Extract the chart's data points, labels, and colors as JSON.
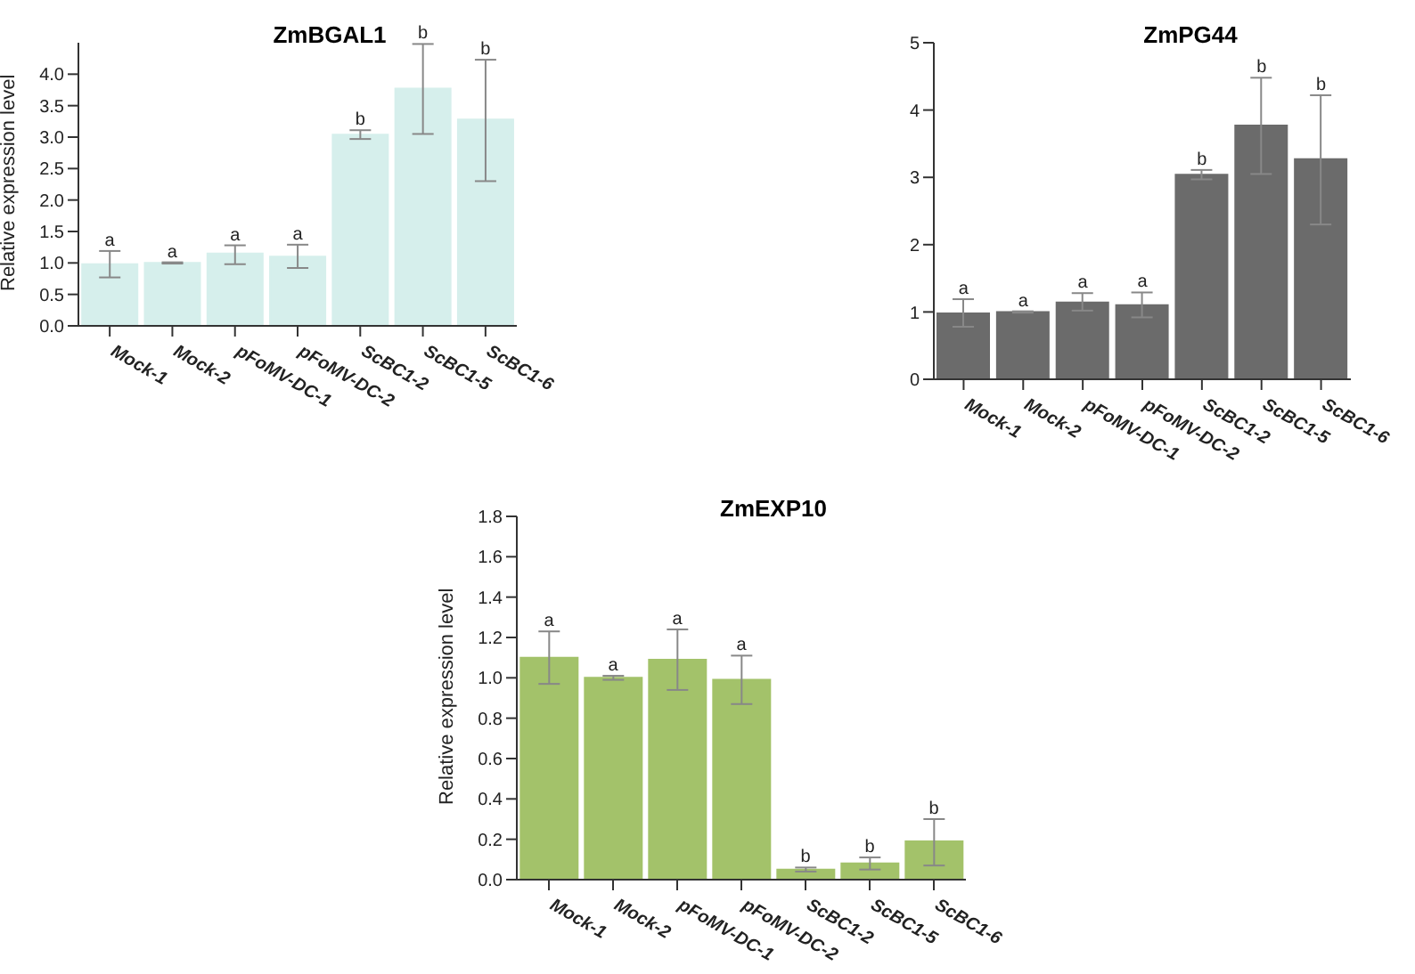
{
  "chart_data": [
    {
      "type": "bar",
      "title": "ZmBGAL1",
      "ylabel": "Relative expression level",
      "categories": [
        "Mock-1",
        "Mock-2",
        "pFoMV-DC-1",
        "pFoMV-DC-2",
        "ScBC1-2",
        "ScBC1-5",
        "ScBC1-6"
      ],
      "series": [
        {
          "color": "#d6efec",
          "values": [
            0.98,
            1.0,
            1.15,
            1.1,
            3.04,
            3.77,
            3.28
          ],
          "errors": [
            [
              0.77,
              1.19
            ],
            [
              0.99,
              1.01
            ],
            [
              0.98,
              1.28
            ],
            [
              0.92,
              1.29
            ],
            [
              2.97,
              3.11
            ],
            [
              3.05,
              4.48
            ],
            [
              2.3,
              4.23
            ]
          ]
        }
      ],
      "ylim": [
        0,
        4.5
      ],
      "yticks": [
        {
          "value": 0,
          "label": "0.0"
        },
        0.5,
        {
          "value": 1,
          "label": "1.0"
        },
        1.5,
        {
          "value": 2,
          "label": "2.0"
        },
        2.5,
        {
          "value": 3,
          "label": "3.0"
        },
        3.5,
        {
          "value": 4,
          "label": "4.0"
        }
      ],
      "grid": false,
      "legend": false,
      "annotations": [
        {
          "text": "a",
          "x": "Mock-1",
          "y": 1.19
        },
        {
          "text": "a",
          "x": "Mock-2",
          "y": 1.01
        },
        {
          "text": "a",
          "x": "pFoMV-DC-1",
          "y": 1.28
        },
        {
          "text": "a",
          "x": "pFoMV-DC-2",
          "y": 1.29
        },
        {
          "text": "b",
          "x": "ScBC1-2",
          "y": 3.11
        },
        {
          "text": "b",
          "x": "ScBC1-5",
          "y": 4.48
        },
        {
          "text": "b",
          "x": "ScBC1-6",
          "y": 4.23
        }
      ]
    },
    {
      "type": "bar",
      "title": "ZmPG44",
      "categories": [
        "Mock-1",
        "Mock-2",
        "pFoMV-DC-1",
        "pFoMV-DC-2",
        "ScBC1-2",
        "ScBC1-5",
        "ScBC1-6"
      ],
      "series": [
        {
          "color": "#6b6b6b",
          "values": [
            0.98,
            1.0,
            1.14,
            1.1,
            3.04,
            3.77,
            3.27
          ],
          "errors": [
            [
              0.78,
              1.19
            ],
            [
              0.99,
              1.01
            ],
            [
              1.02,
              1.28
            ],
            [
              0.92,
              1.29
            ],
            [
              2.97,
              3.11
            ],
            [
              3.05,
              4.48
            ],
            [
              2.3,
              4.22
            ]
          ]
        }
      ],
      "ylim": [
        0,
        5
      ],
      "yticks": [
        0,
        1,
        2,
        3,
        4,
        5
      ],
      "grid": false,
      "legend": false,
      "annotations": [
        {
          "text": "a",
          "x": "Mock-1",
          "y": 1.19
        },
        {
          "text": "a",
          "x": "Mock-2",
          "y": 1.01
        },
        {
          "text": "a",
          "x": "pFoMV-DC-1",
          "y": 1.28
        },
        {
          "text": "a",
          "x": "pFoMV-DC-2",
          "y": 1.29
        },
        {
          "text": "b",
          "x": "ScBC1-2",
          "y": 3.11
        },
        {
          "text": "b",
          "x": "ScBC1-5",
          "y": 4.48
        },
        {
          "text": "b",
          "x": "ScBC1-6",
          "y": 4.22
        }
      ]
    },
    {
      "type": "bar",
      "title": "ZmEXP10",
      "ylabel": "Relative expression level",
      "categories": [
        "Mock-1",
        "Mock-2",
        "pFoMV-DC-1",
        "pFoMV-DC-2",
        "ScBC1-2",
        "ScBC1-5",
        "ScBC1-6"
      ],
      "series": [
        {
          "color": "#a3c26a",
          "values": [
            1.1,
            1.0,
            1.09,
            0.99,
            0.05,
            0.08,
            0.19
          ],
          "errors": [
            [
              0.97,
              1.23
            ],
            [
              0.99,
              1.01
            ],
            [
              0.94,
              1.24
            ],
            [
              0.87,
              1.11
            ],
            [
              0.04,
              0.06
            ],
            [
              0.05,
              0.11
            ],
            [
              0.07,
              0.3
            ]
          ]
        }
      ],
      "ylim": [
        0,
        1.8
      ],
      "yticks": [
        {
          "value": 0,
          "label": "0.0"
        },
        0.2,
        0.4,
        0.6,
        0.8,
        {
          "value": 1,
          "label": "1.0"
        },
        1.2,
        1.4,
        1.6,
        1.8
      ],
      "grid": false,
      "legend": false,
      "annotations": [
        {
          "text": "a",
          "x": "Mock-1",
          "y": 1.23
        },
        {
          "text": "a",
          "x": "Mock-2",
          "y": 1.01
        },
        {
          "text": "a",
          "x": "pFoMV-DC-1",
          "y": 1.24
        },
        {
          "text": "a",
          "x": "pFoMV-DC-2",
          "y": 1.11
        },
        {
          "text": "b",
          "x": "ScBC1-2",
          "y": 0.06
        },
        {
          "text": "b",
          "x": "ScBC1-5",
          "y": 0.11
        },
        {
          "text": "b",
          "x": "ScBC1-6",
          "y": 0.3
        }
      ]
    }
  ]
}
